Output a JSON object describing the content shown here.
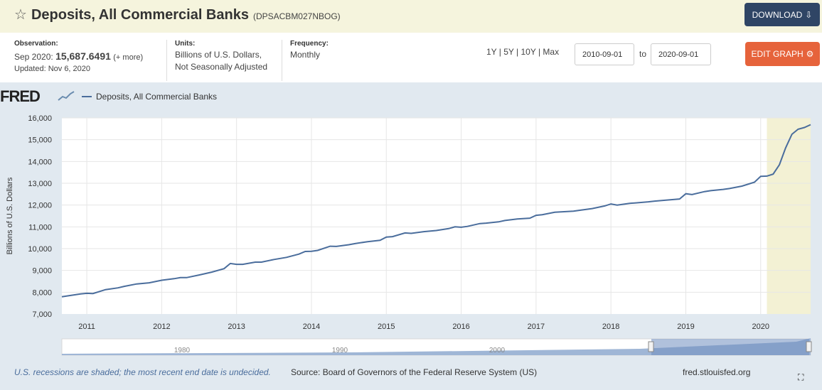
{
  "header": {
    "title": "Deposits, All Commercial Banks",
    "series_id": "(DPSACBM027NBOG)",
    "download_label": "DOWNLOAD"
  },
  "observation": {
    "label": "Observation:",
    "date": "Sep 2020:",
    "value": "15,687.6491",
    "more": "(+ more)",
    "updated": "Updated: Nov 6, 2020"
  },
  "units": {
    "label": "Units:",
    "line1": "Billions of U.S. Dollars,",
    "line2": "Not Seasonally Adjusted"
  },
  "frequency": {
    "label": "Frequency:",
    "value": "Monthly"
  },
  "range": {
    "links": "1Y | 5Y | 10Y | Max",
    "start": "2010-09-01",
    "to": "to",
    "end": "2020-09-01"
  },
  "edit_label": "EDIT GRAPH",
  "logo": "FRED",
  "footer": {
    "note": "U.S. recessions are shaded; the most recent end date is undecided.",
    "source": "Source: Board of Governors of the Federal Reserve System (US)",
    "site": "fred.stlouisfed.org"
  },
  "colors": {
    "line": "#4a6d9c",
    "recession": "#f3f1d4",
    "accent_download": "#2f4565",
    "accent_edit": "#e6633b"
  },
  "chart_data": {
    "type": "line",
    "title": "Deposits, All Commercial Banks",
    "ylabel": "Billions of U.S. Dollars",
    "xlabel": "",
    "legend": [
      "Deposits, All Commercial Banks"
    ],
    "ylim": [
      7000,
      16000
    ],
    "yticks": [
      7000,
      8000,
      9000,
      10000,
      11000,
      12000,
      13000,
      14000,
      15000,
      16000
    ],
    "ytick_labels": [
      "7,000",
      "8,000",
      "9,000",
      "10,000",
      "11,000",
      "12,000",
      "13,000",
      "14,000",
      "15,000",
      "16,000"
    ],
    "xlim": [
      2010.667,
      2020.667
    ],
    "xticks": [
      2011,
      2012,
      2013,
      2014,
      2015,
      2016,
      2017,
      2018,
      2019,
      2020
    ],
    "recession": [
      2020.083,
      2020.667
    ],
    "series": [
      {
        "name": "Deposits, All Commercial Banks",
        "x": [
          2010.667,
          2010.917,
          2011.0,
          2011.083,
          2011.25,
          2011.417,
          2011.5,
          2011.667,
          2011.833,
          2012.0,
          2012.167,
          2012.25,
          2012.333,
          2012.5,
          2012.667,
          2012.833,
          2012.917,
          2013.0,
          2013.083,
          2013.25,
          2013.333,
          2013.5,
          2013.667,
          2013.833,
          2013.917,
          2014.0,
          2014.083,
          2014.25,
          2014.333,
          2014.5,
          2014.583,
          2014.75,
          2014.917,
          2015.0,
          2015.083,
          2015.25,
          2015.333,
          2015.5,
          2015.667,
          2015.833,
          2015.917,
          2016.0,
          2016.083,
          2016.25,
          2016.333,
          2016.5,
          2016.583,
          2016.75,
          2016.917,
          2017.0,
          2017.083,
          2017.25,
          2017.333,
          2017.5,
          2017.583,
          2017.75,
          2017.917,
          2018.0,
          2018.083,
          2018.25,
          2018.333,
          2018.5,
          2018.583,
          2018.75,
          2018.917,
          2019.0,
          2019.083,
          2019.25,
          2019.333,
          2019.5,
          2019.583,
          2019.75,
          2019.917,
          2020.0,
          2020.083,
          2020.167,
          2020.25,
          2020.333,
          2020.417,
          2020.5,
          2020.583,
          2020.667
        ],
        "values": [
          7790,
          7920,
          7950,
          7940,
          8120,
          8200,
          8270,
          8380,
          8430,
          8550,
          8620,
          8670,
          8670,
          8790,
          8920,
          9080,
          9320,
          9280,
          9280,
          9380,
          9380,
          9500,
          9600,
          9750,
          9870,
          9880,
          9920,
          10110,
          10100,
          10180,
          10230,
          10320,
          10380,
          10530,
          10550,
          10720,
          10700,
          10780,
          10830,
          10920,
          11000,
          10980,
          11020,
          11150,
          11170,
          11230,
          11290,
          11360,
          11400,
          11530,
          11560,
          11670,
          11690,
          11720,
          11760,
          11840,
          11960,
          12050,
          12000,
          12080,
          12100,
          12150,
          12180,
          12230,
          12280,
          12520,
          12480,
          12620,
          12660,
          12720,
          12760,
          12870,
          13050,
          13320,
          13330,
          13420,
          13850,
          14620,
          15250,
          15480,
          15560,
          15690
        ]
      }
    ]
  }
}
